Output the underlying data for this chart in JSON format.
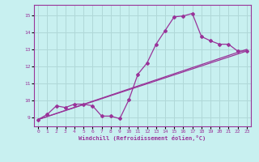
{
  "title": "",
  "xlabel": "Windchill (Refroidissement éolien,°C)",
  "ylabel": "",
  "bg_color": "#c8f0f0",
  "line_color": "#993399",
  "grid_color": "#b0d8d8",
  "xlim": [
    -0.5,
    23.5
  ],
  "ylim": [
    8.5,
    15.6
  ],
  "xticks": [
    0,
    1,
    2,
    3,
    4,
    5,
    6,
    7,
    8,
    9,
    10,
    11,
    12,
    13,
    14,
    15,
    16,
    17,
    18,
    19,
    20,
    21,
    22,
    23
  ],
  "yticks": [
    9,
    10,
    11,
    12,
    13,
    14,
    15
  ],
  "line1_x": [
    0,
    1,
    2,
    3,
    4,
    5,
    6,
    7,
    8,
    9,
    10,
    11,
    12,
    13,
    14,
    15,
    16,
    17,
    18,
    19,
    20,
    21,
    22,
    23
  ],
  "line1_y": [
    8.9,
    9.2,
    9.7,
    9.6,
    9.8,
    9.8,
    9.7,
    9.1,
    9.1,
    8.95,
    10.05,
    11.55,
    12.2,
    13.3,
    14.1,
    14.9,
    14.95,
    15.1,
    13.75,
    13.5,
    13.3,
    13.3,
    12.9,
    12.9
  ],
  "line2_y_start": 8.9,
  "line2_y_end": 12.9,
  "line3_y_start": 8.9,
  "line3_y_end": 13.0
}
